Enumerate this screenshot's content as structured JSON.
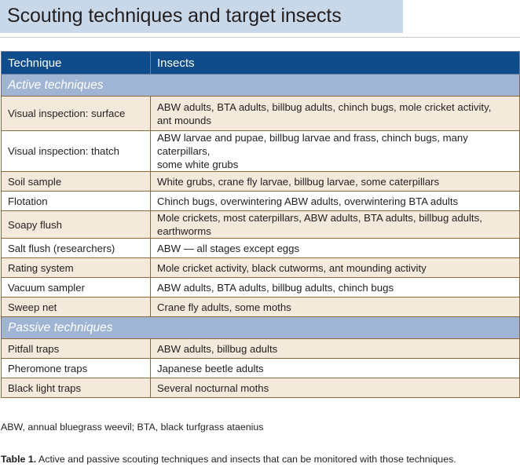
{
  "title": "Scouting techniques and target insects",
  "table": {
    "headers": [
      "Technique",
      "Insects"
    ],
    "sections": [
      {
        "label": "Active techniques",
        "rows": [
          {
            "technique": "Visual inspection: surface",
            "insects": [
              "ABW adults, BTA adults, billbug adults, chinch bugs, mole cricket activity,",
              "ant mounds"
            ]
          },
          {
            "technique": "Visual inspection: thatch",
            "insects": [
              "ABW larvae and pupae, billbug larvae and frass, chinch bugs, many caterpillars,",
              "some white grubs"
            ]
          },
          {
            "technique": "Soil sample",
            "insects": [
              "White grubs, crane fly larvae, billbug larvae, some caterpillars"
            ]
          },
          {
            "technique": "Flotation",
            "insects": [
              "Chinch bugs, overwintering ABW adults, overwintering BTA adults"
            ]
          },
          {
            "technique": "Soapy flush",
            "insects": [
              "Mole crickets, most caterpillars, ABW adults, BTA adults, billbug adults, earthworms"
            ]
          },
          {
            "technique": "Salt flush (researchers)",
            "insects": [
              "ABW — all stages except eggs"
            ]
          },
          {
            "technique": "Rating system",
            "insects": [
              "Mole cricket activity, black cutworms, ant mounding activity"
            ]
          },
          {
            "technique": "Vacuum sampler",
            "insects": [
              "ABW adults, BTA adults, billbug adults, chinch bugs"
            ]
          },
          {
            "technique": "Sweep net",
            "insects": [
              "Crane fly adults, some moths"
            ]
          }
        ]
      },
      {
        "label": "Passive techniques",
        "rows": [
          {
            "technique": "Pitfall traps",
            "insects": [
              "ABW adults, billbug adults"
            ]
          },
          {
            "technique": "Pheromone traps",
            "insects": [
              "Japanese beetle adults"
            ]
          },
          {
            "technique": "Black light traps",
            "insects": [
              "Several nocturnal moths"
            ]
          }
        ]
      }
    ]
  },
  "footnote": "ABW, annual bluegrass weevil; BTA, black turfgrass ataenius",
  "caption": {
    "label": "Table 1.",
    "text": "Active and passive scouting techniques and insects that can be monitored with those techniques."
  },
  "colors": {
    "title_band": "#c9d8e9",
    "header_bg": "#0f4c8c",
    "section_bg": "#9fb5d3",
    "row_tint": "#f3eadb",
    "border": "#8a6a3c"
  }
}
